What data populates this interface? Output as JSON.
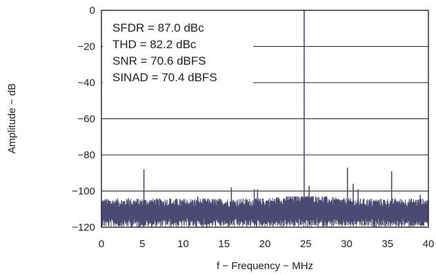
{
  "chart_data": {
    "type": "line",
    "title": "",
    "xlabel": "f − Frequency − MHz",
    "ylabel": "Amplitude − dB",
    "xlim": [
      0,
      40
    ],
    "ylim": [
      -120,
      0
    ],
    "xticks": [
      "0",
      "5",
      "10",
      "15",
      "20",
      "25",
      "30",
      "35",
      "40"
    ],
    "yticks": [
      "0",
      "−20",
      "−40",
      "−60",
      "−80",
      "−100",
      "−120"
    ],
    "grid": "horizontal",
    "series_color": "#4b4a72",
    "annotations": [
      "SFDR = 87.0 dBc",
      "THD = 82.2 dBc",
      "SNR = 70.6 dBFS",
      "SINAD = 70.4 dBFS"
    ],
    "noise_floor": {
      "min": -120,
      "max": -103,
      "typical": -112
    },
    "spurs": [
      {
        "x": 0.2,
        "y": -107
      },
      {
        "x": 3.3,
        "y": -104
      },
      {
        "x": 5.2,
        "y": -88
      },
      {
        "x": 6.5,
        "y": -105
      },
      {
        "x": 8.4,
        "y": -104
      },
      {
        "x": 11.8,
        "y": -103
      },
      {
        "x": 15.9,
        "y": -98
      },
      {
        "x": 18.7,
        "y": -99
      },
      {
        "x": 19.1,
        "y": -99
      },
      {
        "x": 24.8,
        "y": 0
      },
      {
        "x": 25.4,
        "y": -97
      },
      {
        "x": 30.1,
        "y": -87
      },
      {
        "x": 30.8,
        "y": -96
      },
      {
        "x": 31.4,
        "y": -99
      },
      {
        "x": 35.5,
        "y": -89
      },
      {
        "x": 36.0,
        "y": -105
      },
      {
        "x": 39.0,
        "y": -102
      }
    ]
  }
}
